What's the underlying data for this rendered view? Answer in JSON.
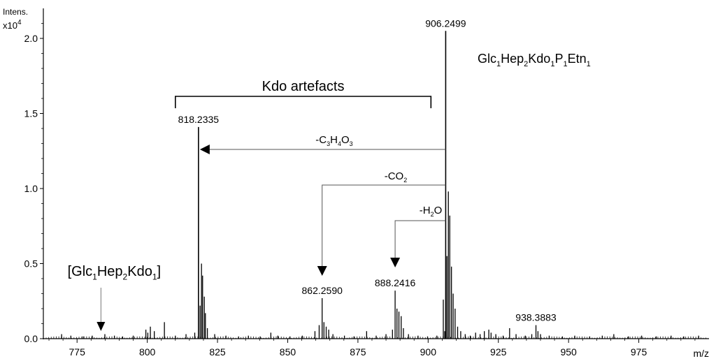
{
  "chart_data": {
    "type": "line",
    "title": "",
    "ylabel_line1": "Intens.",
    "ylabel_line2_base": "x10",
    "ylabel_line2_exp": "4",
    "xlabel": "m/z",
    "xlim": [
      763,
      1000
    ],
    "ylim": [
      0,
      2.2
    ],
    "x_ticks": [
      775,
      800,
      825,
      850,
      875,
      900,
      925,
      950,
      975
    ],
    "y_ticks": [
      0.0,
      0.5,
      1.0,
      1.5,
      2.0
    ],
    "y_tick_labels": [
      "0.0",
      "0.5",
      "1.0",
      "1.5",
      "2.0"
    ],
    "peaks": [
      {
        "x": 769.5,
        "y": 0.03
      },
      {
        "x": 772.8,
        "y": 0.02
      },
      {
        "x": 777.1,
        "y": 0.015
      },
      {
        "x": 780.4,
        "y": 0.02
      },
      {
        "x": 784.9,
        "y": 0.03
      },
      {
        "x": 788.3,
        "y": 0.02
      },
      {
        "x": 791.2,
        "y": 0.015
      },
      {
        "x": 795.0,
        "y": 0.02
      },
      {
        "x": 799.5,
        "y": 0.06
      },
      {
        "x": 800.2,
        "y": 0.04
      },
      {
        "x": 801.1,
        "y": 0.08
      },
      {
        "x": 802.5,
        "y": 0.05
      },
      {
        "x": 806.1,
        "y": 0.11
      },
      {
        "x": 810.0,
        "y": 0.02
      },
      {
        "x": 813.8,
        "y": 0.03
      },
      {
        "x": 816.9,
        "y": 0.04
      },
      {
        "x": 818.2335,
        "y": 1.41
      },
      {
        "x": 818.8,
        "y": 0.22
      },
      {
        "x": 819.3,
        "y": 0.5
      },
      {
        "x": 819.7,
        "y": 0.42
      },
      {
        "x": 820.3,
        "y": 0.28
      },
      {
        "x": 820.7,
        "y": 0.17
      },
      {
        "x": 821.4,
        "y": 0.07
      },
      {
        "x": 824.0,
        "y": 0.03
      },
      {
        "x": 828.0,
        "y": 0.02
      },
      {
        "x": 832.5,
        "y": 0.015
      },
      {
        "x": 836.0,
        "y": 0.02
      },
      {
        "x": 840.2,
        "y": 0.015
      },
      {
        "x": 844.0,
        "y": 0.04
      },
      {
        "x": 846.5,
        "y": 0.02
      },
      {
        "x": 850.8,
        "y": 0.015
      },
      {
        "x": 855.2,
        "y": 0.02
      },
      {
        "x": 859.7,
        "y": 0.05
      },
      {
        "x": 861.2,
        "y": 0.09
      },
      {
        "x": 862.259,
        "y": 0.27
      },
      {
        "x": 862.9,
        "y": 0.11
      },
      {
        "x": 863.7,
        "y": 0.08
      },
      {
        "x": 864.6,
        "y": 0.06
      },
      {
        "x": 866.1,
        "y": 0.03
      },
      {
        "x": 870.2,
        "y": 0.02
      },
      {
        "x": 873.6,
        "y": 0.015
      },
      {
        "x": 878.1,
        "y": 0.05
      },
      {
        "x": 881.5,
        "y": 0.02
      },
      {
        "x": 885.0,
        "y": 0.03
      },
      {
        "x": 887.3,
        "y": 0.06
      },
      {
        "x": 888.2416,
        "y": 0.32
      },
      {
        "x": 888.9,
        "y": 0.2
      },
      {
        "x": 889.6,
        "y": 0.18
      },
      {
        "x": 890.4,
        "y": 0.15
      },
      {
        "x": 891.2,
        "y": 0.07
      },
      {
        "x": 893.0,
        "y": 0.03
      },
      {
        "x": 896.4,
        "y": 0.02
      },
      {
        "x": 899.8,
        "y": 0.015
      },
      {
        "x": 903.1,
        "y": 0.02
      },
      {
        "x": 905.4,
        "y": 0.26
      },
      {
        "x": 905.9,
        "y": 0.05
      },
      {
        "x": 906.2499,
        "y": 2.05
      },
      {
        "x": 906.7,
        "y": 0.55
      },
      {
        "x": 907.2,
        "y": 0.98
      },
      {
        "x": 907.7,
        "y": 0.82
      },
      {
        "x": 908.3,
        "y": 0.48
      },
      {
        "x": 908.9,
        "y": 0.3
      },
      {
        "x": 909.6,
        "y": 0.2
      },
      {
        "x": 910.5,
        "y": 0.08
      },
      {
        "x": 911.6,
        "y": 0.05
      },
      {
        "x": 913.2,
        "y": 0.03
      },
      {
        "x": 915.0,
        "y": 0.02
      },
      {
        "x": 916.9,
        "y": 0.04
      },
      {
        "x": 918.5,
        "y": 0.03
      },
      {
        "x": 920.0,
        "y": 0.05
      },
      {
        "x": 921.6,
        "y": 0.06
      },
      {
        "x": 922.4,
        "y": 0.04
      },
      {
        "x": 924.1,
        "y": 0.03
      },
      {
        "x": 926.7,
        "y": 0.02
      },
      {
        "x": 929.0,
        "y": 0.07
      },
      {
        "x": 931.3,
        "y": 0.03
      },
      {
        "x": 934.6,
        "y": 0.02
      },
      {
        "x": 936.9,
        "y": 0.03
      },
      {
        "x": 938.3883,
        "y": 0.09
      },
      {
        "x": 939.1,
        "y": 0.05
      },
      {
        "x": 940.0,
        "y": 0.03
      },
      {
        "x": 943.1,
        "y": 0.02
      },
      {
        "x": 947.8,
        "y": 0.015
      },
      {
        "x": 952.2,
        "y": 0.02
      },
      {
        "x": 957.5,
        "y": 0.015
      },
      {
        "x": 962.0,
        "y": 0.02
      },
      {
        "x": 966.1,
        "y": 0.03
      },
      {
        "x": 971.3,
        "y": 0.015
      },
      {
        "x": 976.0,
        "y": 0.02
      },
      {
        "x": 981.2,
        "y": 0.015
      },
      {
        "x": 986.5,
        "y": 0.02
      },
      {
        "x": 991.0,
        "y": 0.015
      },
      {
        "x": 996.3,
        "y": 0.02
      }
    ],
    "peak_labels": [
      {
        "x": 818.2335,
        "y": 1.41,
        "text": "818.2335"
      },
      {
        "x": 862.259,
        "y": 0.27,
        "text": "862.2590"
      },
      {
        "x": 888.2416,
        "y": 0.32,
        "text": "888.2416"
      },
      {
        "x": 906.2499,
        "y": 2.05,
        "text": "906.2499"
      },
      {
        "x": 938.3883,
        "y": 0.09,
        "text": "938.3883"
      }
    ],
    "annotations": {
      "parent_formula": [
        {
          "t": "Glc",
          "sub": false
        },
        {
          "t": "1",
          "sub": true
        },
        {
          "t": "Hep",
          "sub": false
        },
        {
          "t": "2",
          "sub": true
        },
        {
          "t": "Kdo",
          "sub": false
        },
        {
          "t": "1",
          "sub": true
        },
        {
          "t": "P",
          "sub": false
        },
        {
          "t": "1",
          "sub": true
        },
        {
          "t": "Etn",
          "sub": false
        },
        {
          "t": "1",
          "sub": true
        }
      ],
      "kdo_artefacts_label": "Kdo artefacts",
      "bracket_x_range": [
        810,
        901
      ],
      "loss_c3h4o3": [
        {
          "t": "-C",
          "sub": false
        },
        {
          "t": "3",
          "sub": true
        },
        {
          "t": "H",
          "sub": false
        },
        {
          "t": "4",
          "sub": true
        },
        {
          "t": "O",
          "sub": false
        },
        {
          "t": "3",
          "sub": true
        }
      ],
      "loss_co2": [
        {
          "t": "-CO",
          "sub": false
        },
        {
          "t": "2",
          "sub": true
        }
      ],
      "loss_h2o": [
        {
          "t": "-H",
          "sub": false
        },
        {
          "t": "2",
          "sub": true
        },
        {
          "t": "O",
          "sub": false
        }
      ],
      "missing_formula": [
        {
          "t": "[Glc",
          "sub": false
        },
        {
          "t": "1",
          "sub": true
        },
        {
          "t": "Hep",
          "sub": false
        },
        {
          "t": "2",
          "sub": true
        },
        {
          "t": "Kdo",
          "sub": false
        },
        {
          "t": "1",
          "sub": true
        },
        {
          "t": "]",
          "sub": false
        }
      ],
      "missing_position_x": 783.5
    }
  }
}
